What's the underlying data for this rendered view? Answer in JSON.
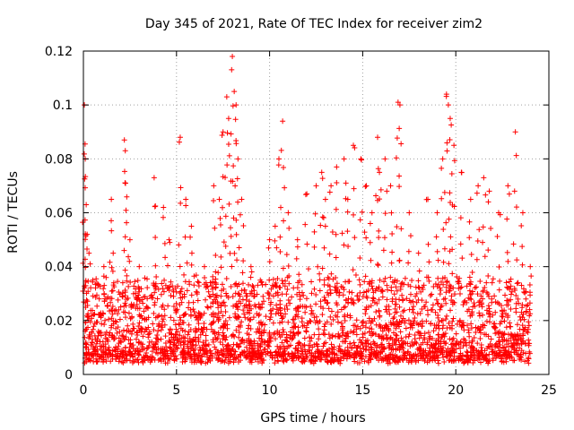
{
  "chart_data": {
    "type": "scatter",
    "title": "Day 345 of 2021, Rate Of TEC Index for receiver zim2",
    "xlabel": "GPS time / hours",
    "ylabel": "ROTI / TECUs",
    "xlim": [
      0,
      25
    ],
    "ylim": [
      0,
      0.12
    ],
    "xticks": [
      0,
      5,
      10,
      15,
      20,
      25
    ],
    "xtick_labels": [
      "0",
      "5",
      "10",
      "15",
      "20",
      "25"
    ],
    "yticks": [
      0,
      0.02,
      0.04,
      0.06,
      0.08,
      0.1,
      0.12
    ],
    "ytick_labels": [
      "0",
      "0.02",
      "0.04",
      "0.06",
      "0.08",
      "0.1",
      "0.12"
    ],
    "grid": true,
    "legend": "none",
    "marker": "+",
    "series": [
      {
        "name": "ROTI",
        "color": "#ff0000",
        "x": [
          0.05,
          0.1,
          0.15,
          0.2,
          0.3,
          0.5,
          0.8,
          1.1,
          1.5,
          1.6,
          2.2,
          2.25,
          2.5,
          3.0,
          3.8,
          4.3,
          4.6,
          5.2,
          5.5,
          5.8,
          6.5,
          7.0,
          7.3,
          7.5,
          7.7,
          7.8,
          8.0,
          8.1,
          8.2,
          8.3,
          8.5,
          9.0,
          9.5,
          10.0,
          10.3,
          10.5,
          10.7,
          11.0,
          11.5,
          12.0,
          12.5,
          12.8,
          13.0,
          13.3,
          13.6,
          14.0,
          14.2,
          14.5,
          14.9,
          15.2,
          15.5,
          15.8,
          15.9,
          16.2,
          16.5,
          16.9,
          17.0,
          17.5,
          18.0,
          18.5,
          19.0,
          19.3,
          19.5,
          19.6,
          19.7,
          19.9,
          20.3,
          20.8,
          21.2,
          21.5,
          21.8,
          22.3,
          22.8,
          23.2,
          23.6,
          24.0
        ],
        "y": [
          0.1,
          0.08,
          0.063,
          0.052,
          0.045,
          0.035,
          0.033,
          0.04,
          0.065,
          0.045,
          0.087,
          0.083,
          0.05,
          0.04,
          0.073,
          0.062,
          0.05,
          0.088,
          0.065,
          0.055,
          0.04,
          0.07,
          0.065,
          0.09,
          0.103,
          0.095,
          0.118,
          0.105,
          0.1,
          0.08,
          0.065,
          0.04,
          0.035,
          0.05,
          0.055,
          0.08,
          0.094,
          0.06,
          0.05,
          0.067,
          0.07,
          0.075,
          0.065,
          0.07,
          0.077,
          0.08,
          0.065,
          0.085,
          0.08,
          0.07,
          0.06,
          0.088,
          0.075,
          0.08,
          0.07,
          0.101,
          0.1,
          0.06,
          0.045,
          0.065,
          0.06,
          0.08,
          0.104,
          0.1,
          0.095,
          0.085,
          0.075,
          0.065,
          0.07,
          0.073,
          0.068,
          0.06,
          0.07,
          0.09,
          0.06,
          0.04
        ]
      }
    ]
  }
}
